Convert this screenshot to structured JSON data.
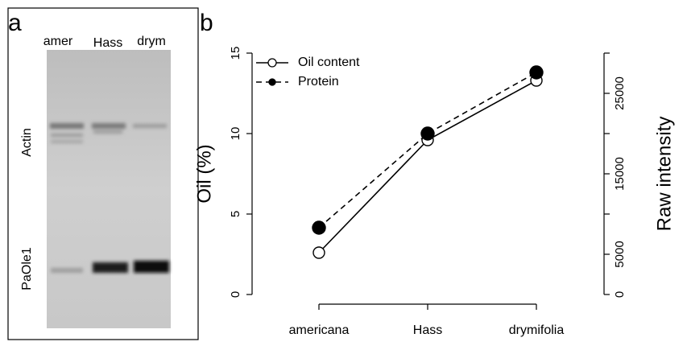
{
  "gel": {
    "panel_label": "a",
    "lanes": [
      "amer",
      "Hass",
      "drym"
    ],
    "bands": [
      "Actin",
      "PaOle1"
    ]
  },
  "chart_data": {
    "type": "line",
    "panel_label": "b",
    "categories": [
      "americana",
      "Hass",
      "drymifolia"
    ],
    "y_label": "Oil (%)",
    "y2_label": "Raw intensity",
    "ylim": [
      0,
      15
    ],
    "yticks": [
      0,
      5,
      10,
      15
    ],
    "y2lim": [
      0,
      30000
    ],
    "y2ticks": [
      0,
      5000,
      {
        "value": 10000,
        "label": null
      },
      15000,
      {
        "value": 20000,
        "label": null
      },
      25000,
      {
        "value": 30000,
        "label": null
      }
    ],
    "legend": "top-left",
    "series": [
      {
        "name": "Oil content",
        "color": "#000000",
        "linestyle": "solid",
        "marker_fill": "none",
        "values": [
          2.6,
          9.6,
          13.3
        ]
      },
      {
        "name": "Protein",
        "color": "#000000",
        "linestyle": "dashed",
        "marker_fill": "#000000",
        "axis": "y2",
        "values": [
          8300,
          20000,
          27600
        ]
      }
    ]
  }
}
